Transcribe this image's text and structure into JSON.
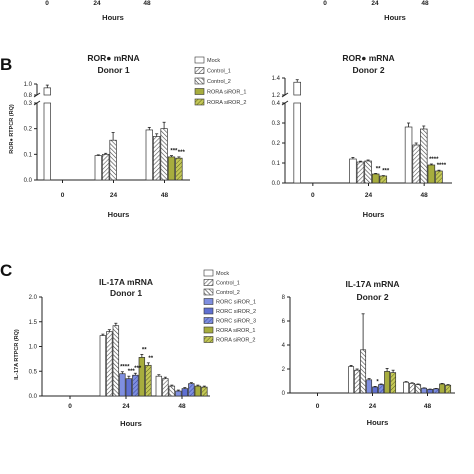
{
  "colors": {
    "mock": "#ffffff",
    "control_1": "#c9c9c9",
    "control_2": "#bdbdbd",
    "rorc_sirna": "#7f8fe0",
    "rora_sirna": "#a7ad3e",
    "axis": "#222222"
  },
  "panels": {
    "b_letter": "B",
    "c_letter": "C"
  },
  "chart_data": [
    {
      "id": "top-left",
      "type": "bar",
      "partial": true,
      "xlabel": "Hours",
      "categories": [
        "0",
        "24",
        "48"
      ]
    },
    {
      "id": "top-right",
      "type": "bar",
      "partial": true,
      "xlabel": "Hours",
      "categories": [
        "0",
        "24",
        "48"
      ]
    },
    {
      "id": "B1",
      "type": "bar",
      "title": "ROR● mRNA",
      "subtitle": "Donor 1",
      "xlabel": "Hours",
      "ylabel": "ROR● RTPCR (RQ)",
      "categories": [
        "0",
        "24",
        "48"
      ],
      "broken_axis": true,
      "ylim_lower": [
        0,
        0.3
      ],
      "ylim_upper": [
        0.8,
        1.0
      ],
      "yticks": [
        "0.0",
        "0.1",
        "0.2",
        "0.3"
      ],
      "yticks_upper": [
        "0.8",
        "1.0"
      ],
      "legend_placement": "top-right",
      "series": [
        {
          "name": "Mock",
          "color_key": "mock",
          "values": [
            0.93,
            0.095,
            0.195
          ],
          "errors": [
            0.05,
            0.003,
            0.01
          ]
        },
        {
          "name": "Control_1",
          "color_key": "control_1",
          "values": [
            null,
            0.1,
            0.17
          ],
          "errors": [
            null,
            0.004,
            0.01
          ]
        },
        {
          "name": "Control_2",
          "color_key": "control_2",
          "values": [
            null,
            0.155,
            0.2
          ],
          "errors": [
            null,
            0.03,
            0.025
          ]
        },
        {
          "name": "RORA siROR_1",
          "color_key": "rora_sirna",
          "values": [
            null,
            null,
            0.09
          ],
          "errors": [
            null,
            null,
            0.005
          ]
        },
        {
          "name": "RORA siROR_2",
          "color_key": "rora_sirna",
          "values": [
            null,
            null,
            0.085
          ],
          "errors": [
            null,
            null,
            0.005
          ]
        }
      ],
      "annotations": [
        {
          "category": "48",
          "series": "RORA siROR_1",
          "text": "***"
        },
        {
          "category": "48",
          "series": "RORA siROR_2",
          "text": "***"
        }
      ]
    },
    {
      "id": "B2",
      "type": "bar",
      "title": "ROR● mRNA",
      "subtitle": "Donor 2",
      "xlabel": "Hours",
      "categories": [
        "0",
        "24",
        "48"
      ],
      "broken_axis": true,
      "ylim_lower": [
        0,
        0.4
      ],
      "ylim_upper": [
        1.2,
        1.4
      ],
      "yticks": [
        "0.0",
        "0.1",
        "0.2",
        "0.3",
        "0.4"
      ],
      "yticks_upper": [
        "1.2",
        "1.4"
      ],
      "series": [
        {
          "name": "Mock",
          "color_key": "mock",
          "values": [
            1.35,
            0.12,
            0.28
          ],
          "errors": [
            0.03,
            0.008,
            0.02
          ]
        },
        {
          "name": "Control_1",
          "color_key": "control_1",
          "values": [
            null,
            0.105,
            0.19
          ],
          "errors": [
            null,
            0.004,
            0.01
          ]
        },
        {
          "name": "Control_2",
          "color_key": "control_2",
          "values": [
            null,
            0.11,
            0.27
          ],
          "errors": [
            null,
            0.005,
            0.015
          ]
        },
        {
          "name": "RORA siROR_1",
          "color_key": "rora_sirna",
          "values": [
            null,
            0.045,
            0.09
          ],
          "errors": [
            null,
            0.003,
            0.005
          ]
        },
        {
          "name": "RORA siROR_2",
          "color_key": "rora_sirna",
          "values": [
            null,
            0.035,
            0.06
          ],
          "errors": [
            null,
            0.002,
            0.004
          ]
        }
      ],
      "annotations": [
        {
          "category": "24",
          "series": "RORA siROR_1",
          "text": "**"
        },
        {
          "category": "24",
          "series": "RORA siROR_2",
          "text": "***"
        },
        {
          "category": "48",
          "series": "RORA siROR_1",
          "text": "****"
        },
        {
          "category": "48",
          "series": "RORA siROR_2",
          "text": "****"
        }
      ]
    },
    {
      "id": "C1",
      "type": "bar",
      "title": "IL-17A mRNA",
      "subtitle": "Donor 1",
      "xlabel": "Hours",
      "ylabel": "IL-17A RTPCR (RQ)",
      "categories": [
        "0",
        "24",
        "48"
      ],
      "ylim": [
        0,
        2.0
      ],
      "yticks": [
        "0.0",
        "0.5",
        "1.0",
        "1.5",
        "2.0"
      ],
      "legend_placement": "top-right",
      "series": [
        {
          "name": "Mock",
          "color_key": "mock",
          "values": [
            null,
            1.22,
            0.4
          ],
          "errors": [
            null,
            0.03,
            0.03
          ]
        },
        {
          "name": "Control_1",
          "color_key": "control_1",
          "values": [
            null,
            1.3,
            0.35
          ],
          "errors": [
            null,
            0.04,
            0.03
          ]
        },
        {
          "name": "Control_2",
          "color_key": "control_2",
          "values": [
            null,
            1.42,
            0.2
          ],
          "errors": [
            null,
            0.05,
            0.02
          ]
        },
        {
          "name": "RORC siROR_1",
          "color_key": "rorc_sirna",
          "values": [
            null,
            0.45,
            0.1
          ],
          "errors": [
            null,
            0.04,
            0.02
          ]
        },
        {
          "name": "RORC siROR_2",
          "color_key": "rorc_sirna",
          "values": [
            null,
            0.35,
            0.15
          ],
          "errors": [
            null,
            0.05,
            0.02
          ]
        },
        {
          "name": "RORC siROR_3",
          "color_key": "rorc_sirna",
          "values": [
            null,
            0.42,
            0.25
          ],
          "errors": [
            null,
            0.04,
            0.02
          ]
        },
        {
          "name": "RORA siROR_1",
          "color_key": "rora_sirna",
          "values": [
            null,
            0.78,
            0.2
          ],
          "errors": [
            null,
            0.06,
            0.02
          ]
        },
        {
          "name": "RORA siROR_2",
          "color_key": "rora_sirna",
          "values": [
            null,
            0.62,
            0.18
          ],
          "errors": [
            null,
            0.05,
            0.02
          ]
        }
      ],
      "annotations": [
        {
          "category": "24",
          "series": "RORC siROR_1",
          "text": "****"
        },
        {
          "category": "24",
          "series": "RORC siROR_2",
          "text": "***"
        },
        {
          "category": "24",
          "series": "RORC siROR_3",
          "text": "***"
        },
        {
          "category": "24",
          "series": "RORA siROR_1",
          "text": "**"
        },
        {
          "category": "24",
          "series": "RORA siROR_2",
          "text": "**"
        }
      ]
    },
    {
      "id": "C2",
      "type": "bar",
      "title": "IL-17A mRNA",
      "subtitle": "Donor 2",
      "xlabel": "Hours",
      "categories": [
        "0",
        "24",
        "48"
      ],
      "ylim": [
        0,
        8
      ],
      "yticks": [
        "0",
        "2",
        "4",
        "6",
        "8"
      ],
      "series": [
        {
          "name": "Mock",
          "color_key": "mock",
          "values": [
            null,
            2.2,
            0.9
          ],
          "errors": [
            null,
            0.1,
            0.05
          ]
        },
        {
          "name": "Control_1",
          "color_key": "control_1",
          "values": [
            null,
            1.9,
            0.8
          ],
          "errors": [
            null,
            0.1,
            0.05
          ]
        },
        {
          "name": "Control_2",
          "color_key": "control_2",
          "values": [
            null,
            3.6,
            0.7
          ],
          "errors": [
            null,
            3.0,
            0.05
          ]
        },
        {
          "name": "RORC siROR_1",
          "color_key": "rorc_sirna",
          "values": [
            null,
            1.1,
            0.4
          ],
          "errors": [
            null,
            0.1,
            0.03
          ]
        },
        {
          "name": "RORC siROR_2",
          "color_key": "rorc_sirna",
          "values": [
            null,
            0.5,
            0.3
          ],
          "errors": [
            null,
            0.05,
            0.03
          ]
        },
        {
          "name": "RORC siROR_3",
          "color_key": "rorc_sirna",
          "values": [
            null,
            0.7,
            0.35
          ],
          "errors": [
            null,
            0.05,
            0.03
          ]
        },
        {
          "name": "RORA siROR_1",
          "color_key": "rora_sirna",
          "values": [
            null,
            1.8,
            0.75
          ],
          "errors": [
            null,
            0.25,
            0.05
          ]
        },
        {
          "name": "RORA siROR_2",
          "color_key": "rora_sirna",
          "values": [
            null,
            1.7,
            0.65
          ],
          "errors": [
            null,
            0.2,
            0.05
          ]
        }
      ],
      "annotations": [
        {
          "category": "24",
          "series": "RORC siROR_2",
          "text": "*"
        }
      ]
    }
  ]
}
